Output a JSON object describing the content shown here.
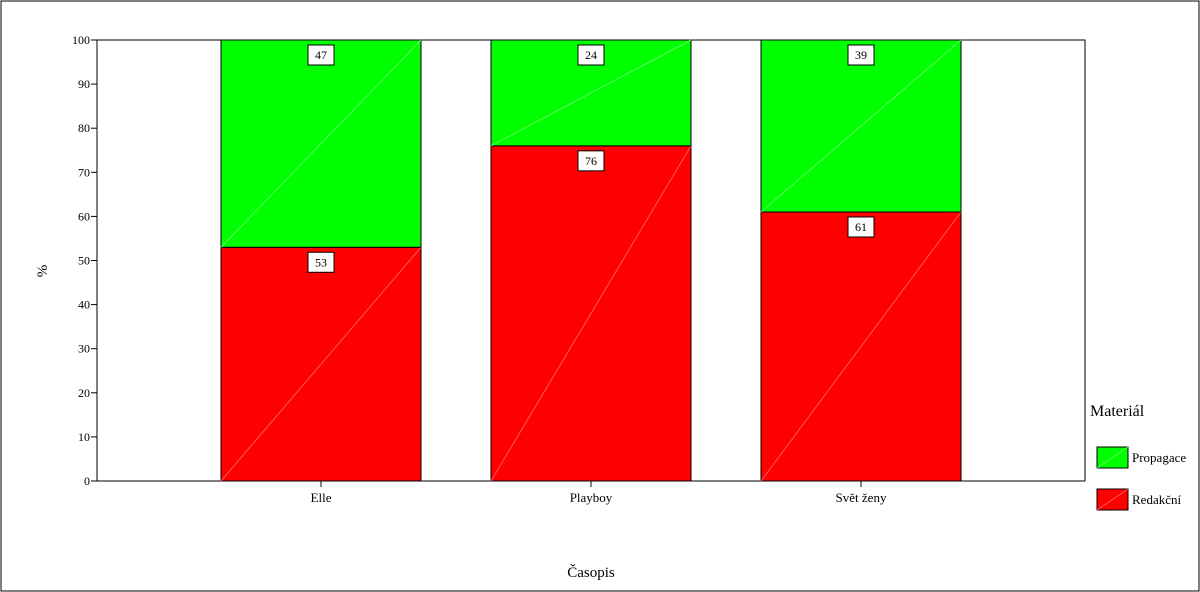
{
  "chart_data": {
    "type": "bar",
    "stacked": true,
    "percent": true,
    "categories": [
      "Elle",
      "Playboy",
      "Svět ženy"
    ],
    "series": [
      {
        "name": "Redakční",
        "values": [
          53,
          76,
          61
        ],
        "color": "#ff0000"
      },
      {
        "name": "Propagace",
        "values": [
          47,
          24,
          39
        ],
        "color": "#00ff00"
      }
    ],
    "data_labels": [
      [
        "53",
        "76",
        "61"
      ],
      [
        "47",
        "24",
        "39"
      ]
    ],
    "xlabel": "Časopis",
    "ylabel": "%",
    "ylim": [
      0,
      100
    ],
    "yticks": [
      "0",
      "10",
      "20",
      "30",
      "40",
      "50",
      "60",
      "70",
      "80",
      "90",
      "100"
    ],
    "grid": false,
    "legend": {
      "title": "Materiál",
      "position": "right",
      "order": [
        "Propagace",
        "Redakční"
      ]
    }
  }
}
